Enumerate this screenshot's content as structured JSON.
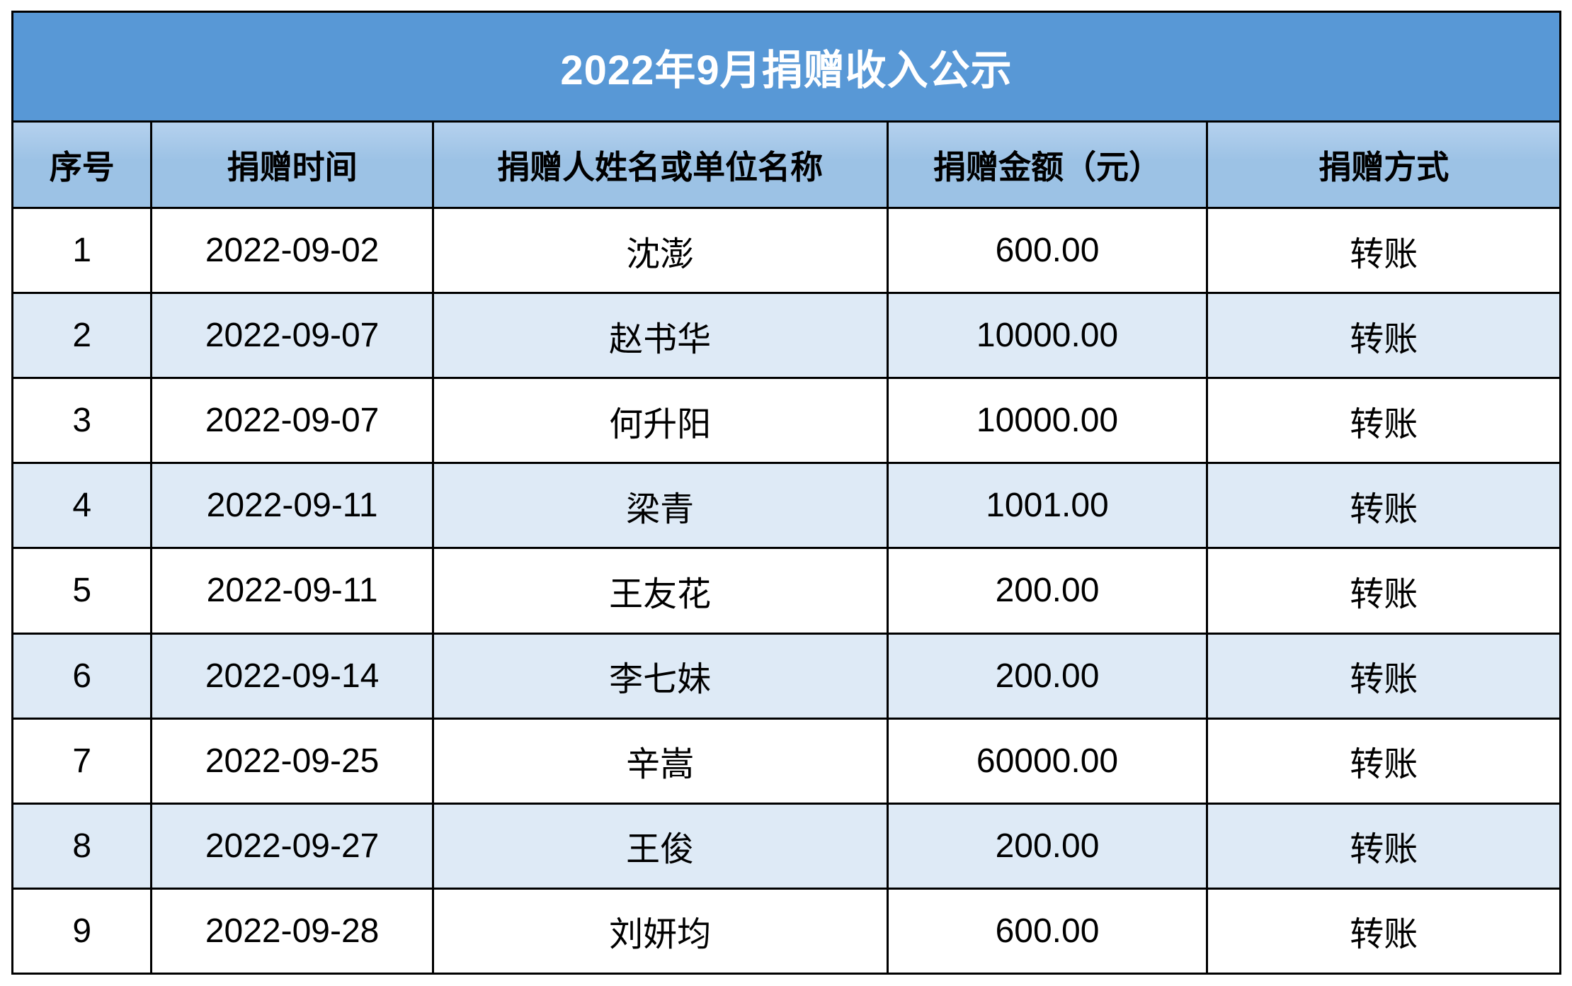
{
  "title": "2022年9月捐赠收入公示",
  "colors": {
    "banner": "#5898D6",
    "header_top": "#B5D1EE",
    "header_bottom": "#9CC2E5",
    "row_alt": "#DEEAF6",
    "border": "#000000",
    "title_text": "#FFFFFF"
  },
  "table": {
    "columns": [
      "序号",
      "捐赠时间",
      "捐赠人姓名或单位名称",
      "捐赠金额（元）",
      "捐赠方式"
    ],
    "rows": [
      {
        "no": "1",
        "date": "2022-09-02",
        "donor": "沈澎",
        "amount": "600.00",
        "method": "转账"
      },
      {
        "no": "2",
        "date": "2022-09-07",
        "donor": "赵书华",
        "amount": "10000.00",
        "method": "转账"
      },
      {
        "no": "3",
        "date": "2022-09-07",
        "donor": "何升阳",
        "amount": "10000.00",
        "method": "转账"
      },
      {
        "no": "4",
        "date": "2022-09-11",
        "donor": "梁青",
        "amount": "1001.00",
        "method": "转账"
      },
      {
        "no": "5",
        "date": "2022-09-11",
        "donor": "王友花",
        "amount": "200.00",
        "method": "转账"
      },
      {
        "no": "6",
        "date": "2022-09-14",
        "donor": "李七妹",
        "amount": "200.00",
        "method": "转账"
      },
      {
        "no": "7",
        "date": "2022-09-25",
        "donor": "辛嵩",
        "amount": "60000.00",
        "method": "转账"
      },
      {
        "no": "8",
        "date": "2022-09-27",
        "donor": "王俊",
        "amount": "200.00",
        "method": "转账"
      },
      {
        "no": "9",
        "date": "2022-09-28",
        "donor": "刘妍均",
        "amount": "600.00",
        "method": "转账"
      }
    ]
  }
}
